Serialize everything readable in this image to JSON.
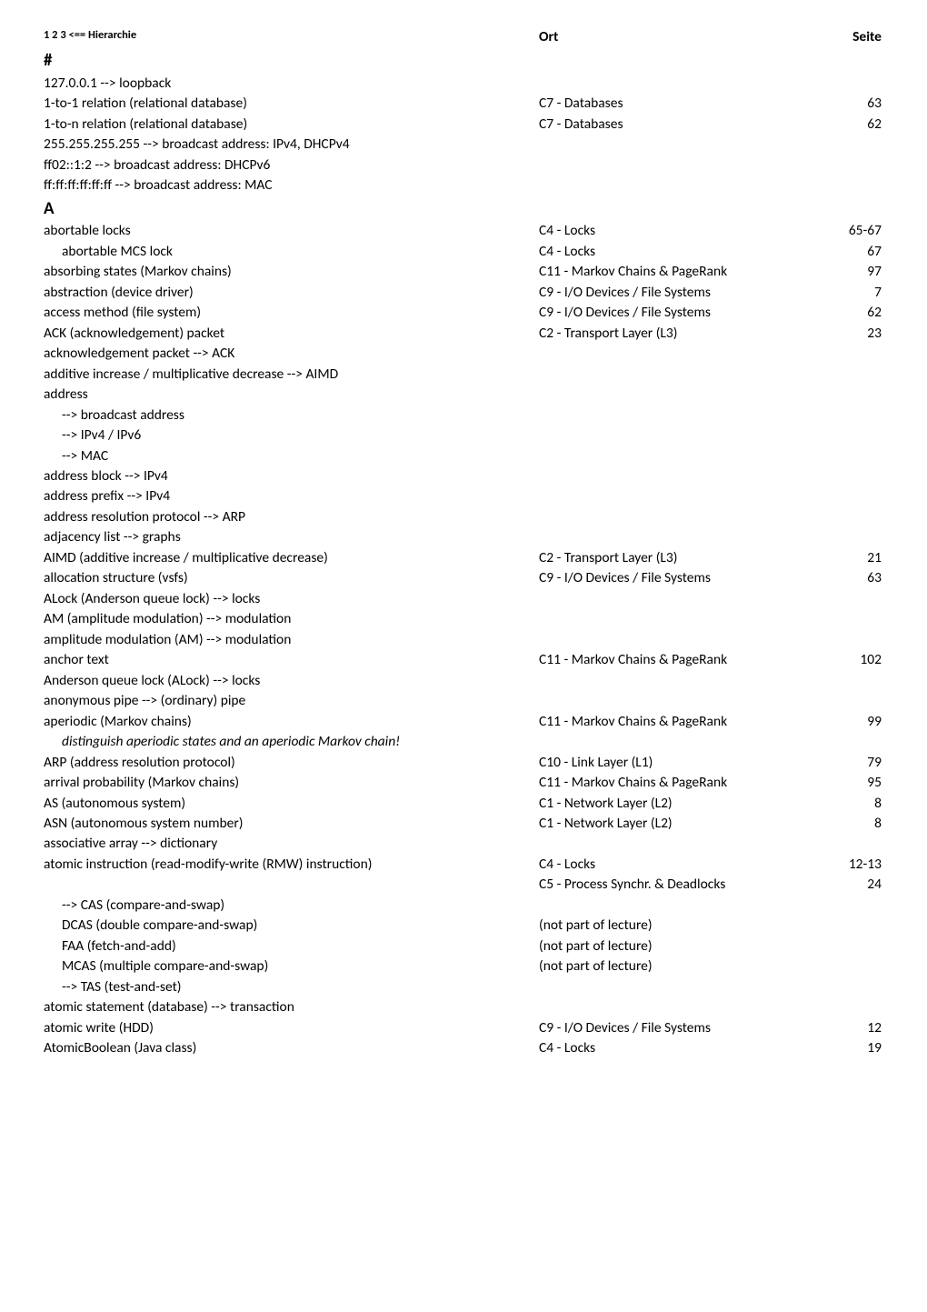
{
  "header": {
    "hier_label": "1 2 3 <== Hierarchie",
    "ort_label": "Ort",
    "seite_label": "Seite"
  },
  "sections": [
    {
      "letter": "#",
      "rows": [
        {
          "term": "127.0.0.1 --> loopback",
          "ort": "",
          "page": ""
        },
        {
          "term": "1-to-1 relation (relational database)",
          "ort": "C7 - Databases",
          "page": "63"
        },
        {
          "term": "1-to-n relation (relational database)",
          "ort": "C7 - Databases",
          "page": "62"
        },
        {
          "term": "255.255.255.255 --> broadcast address: IPv4, DHCPv4",
          "ort": "",
          "page": ""
        },
        {
          "term": "ff02::1:2 --> broadcast address: DHCPv6",
          "ort": "",
          "page": ""
        },
        {
          "term": "ff:ff:ff:ff:ff:ff --> broadcast address: MAC",
          "ort": "",
          "page": ""
        }
      ]
    },
    {
      "letter": "A",
      "rows": [
        {
          "term": "abortable locks",
          "ort": "C4 - Locks",
          "page": "65-67"
        },
        {
          "term": "abortable MCS lock",
          "ort": "C4 - Locks",
          "page": "67",
          "indent": 1
        },
        {
          "term": "absorbing states (Markov chains)",
          "ort": "C11 - Markov Chains & PageRank",
          "page": "97"
        },
        {
          "term": "abstraction (device driver)",
          "ort": "C9 - I/O Devices / File Systems",
          "page": "7"
        },
        {
          "term": "access method (file system)",
          "ort": "C9 - I/O Devices / File Systems",
          "page": "62"
        },
        {
          "term": "ACK (acknowledgement) packet",
          "ort": "C2 - Transport Layer (L3)",
          "page": "23"
        },
        {
          "term": "acknowledgement packet --> ACK",
          "ort": "",
          "page": ""
        },
        {
          "term": "additive increase / multiplicative decrease --> AIMD",
          "ort": "",
          "page": ""
        },
        {
          "term": "address",
          "ort": "",
          "page": ""
        },
        {
          "term": "--> broadcast address",
          "ort": "",
          "page": "",
          "indent": 1
        },
        {
          "term": "--> IPv4 / IPv6",
          "ort": "",
          "page": "",
          "indent": 1
        },
        {
          "term": "--> MAC",
          "ort": "",
          "page": "",
          "indent": 1
        },
        {
          "term": "address block --> IPv4",
          "ort": "",
          "page": ""
        },
        {
          "term": "address prefix --> IPv4",
          "ort": "",
          "page": ""
        },
        {
          "term": "address resolution protocol --> ARP",
          "ort": "",
          "page": ""
        },
        {
          "term": "adjacency list --> graphs",
          "ort": "",
          "page": ""
        },
        {
          "term": "AIMD (additive increase / multiplicative decrease)",
          "ort": "C2 - Transport Layer (L3)",
          "page": "21"
        },
        {
          "term": "allocation structure (vsfs)",
          "ort": "C9 - I/O Devices / File Systems",
          "page": "63"
        },
        {
          "term": "ALock (Anderson queue lock) --> locks",
          "ort": "",
          "page": ""
        },
        {
          "term": "AM (amplitude modulation) --> modulation",
          "ort": "",
          "page": ""
        },
        {
          "term": "amplitude modulation (AM) --> modulation",
          "ort": "",
          "page": ""
        },
        {
          "term": "anchor text",
          "ort": "C11 - Markov Chains & PageRank",
          "page": "102"
        },
        {
          "term": "Anderson queue lock (ALock) --> locks",
          "ort": "",
          "page": ""
        },
        {
          "term": "anonymous pipe --> (ordinary) pipe",
          "ort": "",
          "page": ""
        },
        {
          "term": "aperiodic (Markov chains)",
          "ort": "C11 - Markov Chains & PageRank",
          "page": "99"
        },
        {
          "term": "distinguish aperiodic states and an aperiodic Markov chain!",
          "ort": "",
          "page": "",
          "indent": 1,
          "italic": true
        },
        {
          "term": "ARP (address resolution protocol)",
          "ort": "C10 - Link Layer (L1)",
          "page": "79"
        },
        {
          "term": "arrival probability (Markov chains)",
          "ort": "C11 - Markov Chains & PageRank",
          "page": "95"
        },
        {
          "term": "AS (autonomous system)",
          "ort": "C1 - Network Layer (L2)",
          "page": "8"
        },
        {
          "term": "ASN (autonomous system number)",
          "ort": "C1 - Network Layer (L2)",
          "page": "8"
        },
        {
          "term": "associative array --> dictionary",
          "ort": "",
          "page": ""
        },
        {
          "term": "atomic instruction (read-modify-write (RMW) instruction)",
          "ort": "C4 - Locks",
          "page": "12-13"
        },
        {
          "term": "",
          "ort": "C5 - Process Synchr. & Deadlocks",
          "page": "24"
        },
        {
          "term": "--> CAS (compare-and-swap)",
          "ort": "",
          "page": "",
          "indent": 1
        },
        {
          "term": "DCAS (double compare-and-swap)",
          "ort": "(not part of lecture)",
          "page": "",
          "indent": 1
        },
        {
          "term": "FAA (fetch-and-add)",
          "ort": "(not part of lecture)",
          "page": "",
          "indent": 1
        },
        {
          "term": "MCAS (multiple compare-and-swap)",
          "ort": "(not part of lecture)",
          "page": "",
          "indent": 1
        },
        {
          "term": "--> TAS (test-and-set)",
          "ort": "",
          "page": "",
          "indent": 1
        },
        {
          "term": "atomic statement (database) --> transaction",
          "ort": "",
          "page": ""
        },
        {
          "term": "atomic write (HDD)",
          "ort": "C9 - I/O Devices / File Systems",
          "page": "12"
        },
        {
          "term": "AtomicBoolean (Java class)",
          "ort": "C4 - Locks",
          "page": "19"
        }
      ]
    }
  ]
}
